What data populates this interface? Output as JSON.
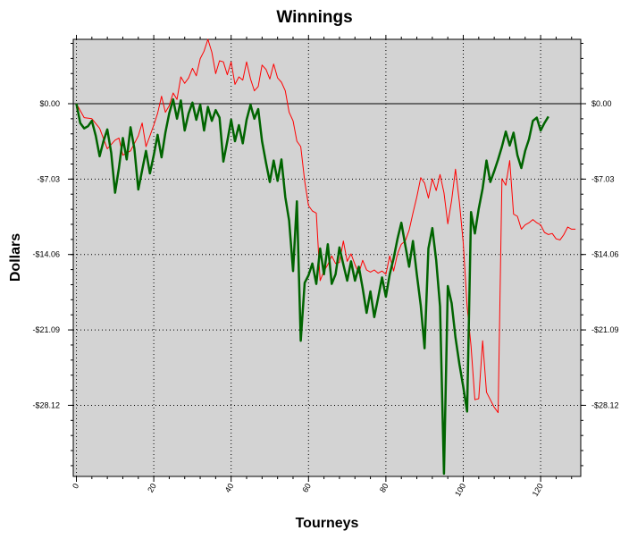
{
  "chart_data": {
    "type": "line",
    "title": "Winnings",
    "xlabel": "Tourneys",
    "ylabel": "Dollars",
    "xlim": [
      0,
      131
    ],
    "ylim": [
      -34.5,
      6
    ],
    "x_ticks": [
      0,
      20,
      40,
      60,
      80,
      100,
      120
    ],
    "x_tick_labels": [
      "0",
      "20",
      "40",
      "60",
      "80",
      "100",
      "120"
    ],
    "y_ticks": [
      0,
      -7.03,
      -14.06,
      -21.09,
      -28.12
    ],
    "y_tick_labels": [
      "$0.00",
      "-$7.03",
      "-$14.06",
      "-$21.09",
      "-$28.12"
    ],
    "grid": true,
    "legend": "none",
    "background": "#d3d3d3",
    "series": [
      {
        "color": "#ff0000",
        "points": [
          [
            0,
            0
          ],
          [
            2,
            -1.3
          ],
          [
            4,
            -1.4
          ],
          [
            6,
            -2.3
          ],
          [
            8,
            -4.2
          ],
          [
            10,
            -3.4
          ],
          [
            11,
            -3.2
          ],
          [
            12,
            -4.8
          ],
          [
            14,
            -4.4
          ],
          [
            16,
            -3
          ],
          [
            17,
            -1.8
          ],
          [
            18,
            -4
          ],
          [
            19,
            -3
          ],
          [
            20,
            -2
          ],
          [
            21,
            -0.9
          ],
          [
            22,
            0.7
          ],
          [
            23,
            -0.8
          ],
          [
            24,
            -0.2
          ],
          [
            25,
            1
          ],
          [
            26,
            0.4
          ],
          [
            27,
            2.5
          ],
          [
            28,
            1.9
          ],
          [
            29,
            2.4
          ],
          [
            30,
            3.3
          ],
          [
            31,
            2.6
          ],
          [
            32,
            4.2
          ],
          [
            33,
            4.9
          ],
          [
            34,
            6
          ],
          [
            35,
            4.8
          ],
          [
            36,
            2.8
          ],
          [
            37,
            4
          ],
          [
            38,
            3.9
          ],
          [
            39,
            2.7
          ],
          [
            40,
            3.9
          ],
          [
            41,
            1.8
          ],
          [
            42,
            2.5
          ],
          [
            43,
            2.2
          ],
          [
            44,
            3.9
          ],
          [
            45,
            2.3
          ],
          [
            46,
            1.2
          ],
          [
            47,
            1.6
          ],
          [
            48,
            3.6
          ],
          [
            49,
            3.2
          ],
          [
            50,
            2.3
          ],
          [
            51,
            3.7
          ],
          [
            52,
            2.4
          ],
          [
            53,
            2
          ],
          [
            54,
            1.2
          ],
          [
            55,
            -0.8
          ],
          [
            56,
            -1.6
          ],
          [
            57,
            -3.5
          ],
          [
            58,
            -4
          ],
          [
            59,
            -7.2
          ],
          [
            60,
            -9.5
          ],
          [
            61,
            -10
          ],
          [
            62,
            -10.2
          ],
          [
            63,
            -16.5
          ],
          [
            64,
            -15.6
          ],
          [
            65,
            -15
          ],
          [
            66,
            -14.2
          ],
          [
            67,
            -14.9
          ],
          [
            68,
            -14.8
          ],
          [
            69,
            -12.8
          ],
          [
            70,
            -14.7
          ],
          [
            71,
            -14
          ],
          [
            72,
            -15
          ],
          [
            73,
            -15.8
          ],
          [
            74,
            -14.6
          ],
          [
            75,
            -15.5
          ],
          [
            76,
            -15.7
          ],
          [
            77,
            -15.5
          ],
          [
            78,
            -15.8
          ],
          [
            79,
            -15.6
          ],
          [
            80,
            -15.9
          ],
          [
            81,
            -14.2
          ],
          [
            82,
            -15.6
          ],
          [
            83,
            -14
          ],
          [
            84,
            -13.1
          ],
          [
            85,
            -12.8
          ],
          [
            86,
            -11.8
          ],
          [
            87,
            -10.2
          ],
          [
            88,
            -8.7
          ],
          [
            89,
            -6.9
          ],
          [
            90,
            -7.4
          ],
          [
            91,
            -8.8
          ],
          [
            92,
            -7
          ],
          [
            93,
            -8.1
          ],
          [
            94,
            -6.6
          ],
          [
            95,
            -8.3
          ],
          [
            96,
            -11.2
          ],
          [
            97,
            -9
          ],
          [
            98,
            -6.1
          ],
          [
            99,
            -9.2
          ],
          [
            100,
            -13
          ],
          [
            101,
            -18.9
          ],
          [
            102,
            -22.6
          ],
          [
            103,
            -27.6
          ],
          [
            104,
            -27.5
          ],
          [
            105,
            -22.1
          ],
          [
            106,
            -26.9
          ],
          [
            107,
            -27.6
          ],
          [
            108,
            -28.3
          ],
          [
            109,
            -28.8
          ],
          [
            110,
            -7
          ],
          [
            111,
            -7.6
          ],
          [
            112,
            -5.3
          ],
          [
            113,
            -10.3
          ],
          [
            114,
            -10.5
          ],
          [
            115,
            -11.7
          ],
          [
            116,
            -11.3
          ],
          [
            117,
            -11.1
          ],
          [
            118,
            -10.8
          ],
          [
            119,
            -11.1
          ],
          [
            120,
            -11.3
          ],
          [
            121,
            -12
          ],
          [
            122,
            -12.2
          ],
          [
            123,
            -12.1
          ],
          [
            124,
            -12.6
          ],
          [
            125,
            -12.7
          ],
          [
            126,
            -12.2
          ],
          [
            127,
            -11.5
          ],
          [
            128,
            -11.7
          ],
          [
            129,
            -11.7
          ]
        ]
      },
      {
        "color": "#006400",
        "points": [
          [
            0,
            0
          ],
          [
            1,
            -1.8
          ],
          [
            2,
            -2.3
          ],
          [
            3,
            -2.1
          ],
          [
            4,
            -1.6
          ],
          [
            5,
            -3
          ],
          [
            6,
            -4.9
          ],
          [
            7,
            -3.5
          ],
          [
            8,
            -2.4
          ],
          [
            9,
            -4.6
          ],
          [
            10,
            -8.3
          ],
          [
            11,
            -6
          ],
          [
            12,
            -3.2
          ],
          [
            13,
            -5.2
          ],
          [
            14,
            -2.2
          ],
          [
            15,
            -4.2
          ],
          [
            16,
            -8
          ],
          [
            17,
            -6.2
          ],
          [
            18,
            -4.4
          ],
          [
            19,
            -6.5
          ],
          [
            20,
            -4.8
          ],
          [
            21,
            -2.9
          ],
          [
            22,
            -5
          ],
          [
            23,
            -2.7
          ],
          [
            24,
            -0.9
          ],
          [
            25,
            0.4
          ],
          [
            26,
            -1.4
          ],
          [
            27,
            0.3
          ],
          [
            28,
            -2.5
          ],
          [
            29,
            -0.9
          ],
          [
            30,
            0.1
          ],
          [
            31,
            -1.5
          ],
          [
            32,
            -0.1
          ],
          [
            33,
            -2.5
          ],
          [
            34,
            -0.3
          ],
          [
            35,
            -1.6
          ],
          [
            36,
            -0.6
          ],
          [
            37,
            -1.3
          ],
          [
            38,
            -5.4
          ],
          [
            39,
            -3.5
          ],
          [
            40,
            -1.5
          ],
          [
            41,
            -3.5
          ],
          [
            42,
            -2
          ],
          [
            43,
            -3.7
          ],
          [
            44,
            -1.5
          ],
          [
            45,
            -0.1
          ],
          [
            46,
            -1.4
          ],
          [
            47,
            -0.5
          ],
          [
            48,
            -3.5
          ],
          [
            49,
            -5.5
          ],
          [
            50,
            -7.3
          ],
          [
            51,
            -5.3
          ],
          [
            52,
            -7.2
          ],
          [
            53,
            -5.2
          ],
          [
            54,
            -8.7
          ],
          [
            55,
            -10.9
          ],
          [
            56,
            -15.6
          ],
          [
            57,
            -9.1
          ],
          [
            58,
            -22.1
          ],
          [
            59,
            -16.7
          ],
          [
            60,
            -16
          ],
          [
            61,
            -14.9
          ],
          [
            62,
            -16.8
          ],
          [
            63,
            -13.5
          ],
          [
            64,
            -15.9
          ],
          [
            65,
            -13.1
          ],
          [
            66,
            -16.8
          ],
          [
            67,
            -15.9
          ],
          [
            68,
            -13.4
          ],
          [
            69,
            -15
          ],
          [
            70,
            -16.5
          ],
          [
            71,
            -14.7
          ],
          [
            72,
            -16.5
          ],
          [
            73,
            -15.2
          ],
          [
            74,
            -17.2
          ],
          [
            75,
            -19.5
          ],
          [
            76,
            -17.5
          ],
          [
            77,
            -19.9
          ],
          [
            78,
            -18.1
          ],
          [
            79,
            -16.2
          ],
          [
            80,
            -18
          ],
          [
            81,
            -15.9
          ],
          [
            82,
            -14.4
          ],
          [
            83,
            -12.6
          ],
          [
            84,
            -11.1
          ],
          [
            85,
            -13.2
          ],
          [
            86,
            -15.2
          ],
          [
            87,
            -12.8
          ],
          [
            88,
            -15.9
          ],
          [
            89,
            -18.8
          ],
          [
            90,
            -22.8
          ],
          [
            91,
            -13.5
          ],
          [
            92,
            -11.6
          ],
          [
            93,
            -14.6
          ],
          [
            94,
            -18.9
          ],
          [
            95,
            -34.5
          ],
          [
            96,
            -17
          ],
          [
            97,
            -18.6
          ],
          [
            98,
            -21.8
          ],
          [
            99,
            -24.3
          ],
          [
            100,
            -26.4
          ],
          [
            101,
            -28.7
          ],
          [
            102,
            -10.1
          ],
          [
            103,
            -12.1
          ],
          [
            104,
            -9.8
          ],
          [
            105,
            -7.9
          ],
          [
            106,
            -5.3
          ],
          [
            107,
            -7.3
          ],
          [
            108,
            -6.3
          ],
          [
            109,
            -5.2
          ],
          [
            110,
            -4
          ],
          [
            111,
            -2.6
          ],
          [
            112,
            -3.9
          ],
          [
            113,
            -2.7
          ],
          [
            114,
            -4.8
          ],
          [
            115,
            -6
          ],
          [
            116,
            -4.4
          ],
          [
            117,
            -3.3
          ],
          [
            118,
            -1.6
          ],
          [
            119,
            -1.3
          ],
          [
            120,
            -2.5
          ],
          [
            121,
            -1.8
          ],
          [
            122,
            -1.2
          ]
        ]
      }
    ]
  }
}
